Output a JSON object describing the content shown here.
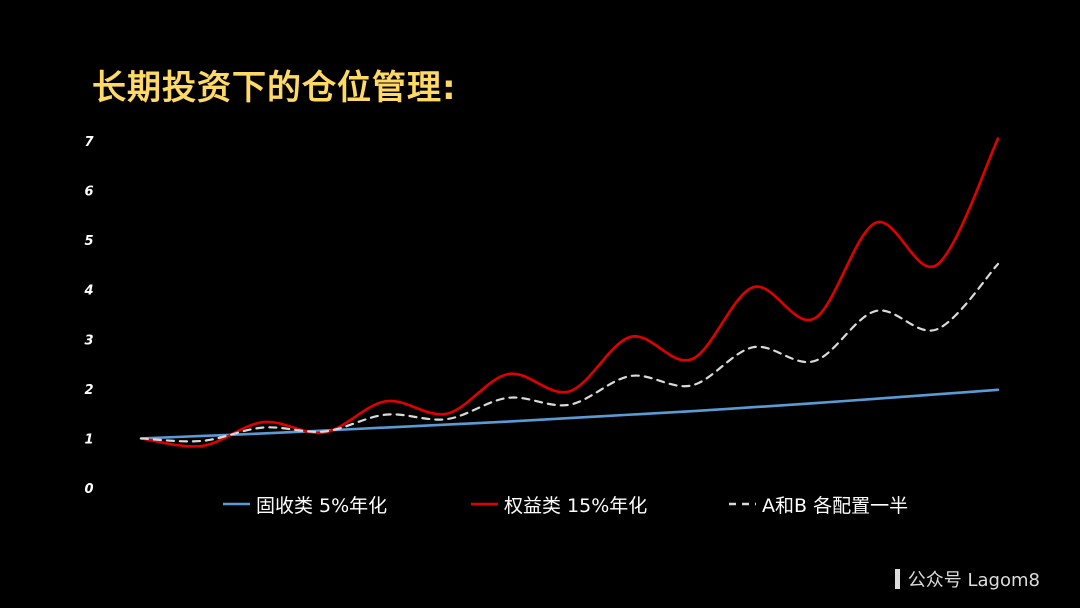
{
  "slide": {
    "title": "长期投资下的仓位管理:",
    "watermark": "公众号 Lagom8"
  },
  "colors": {
    "background": "#000000",
    "title": "#FFD966",
    "fixed_income": "#5B9BD5",
    "equity": "#E00000",
    "mixed": "#D9D9D9"
  },
  "chart_data": {
    "type": "line",
    "title": "",
    "xlabel": "",
    "ylabel": "",
    "ylim": [
      0,
      7
    ],
    "yticks": [
      0,
      1,
      2,
      3,
      4,
      5,
      6,
      7
    ],
    "x": [
      0,
      1,
      2,
      3,
      4,
      5,
      6,
      7,
      8,
      9,
      10,
      11,
      12,
      13,
      14
    ],
    "grid": false,
    "legend_position": "bottom",
    "series": [
      {
        "name": "固收类 5%年化",
        "color": "#5B9BD5",
        "style": "solid",
        "values": [
          1.0,
          1.05,
          1.1,
          1.16,
          1.22,
          1.28,
          1.34,
          1.41,
          1.48,
          1.55,
          1.63,
          1.71,
          1.8,
          1.89,
          1.98
        ]
      },
      {
        "name": "权益类 15%年化",
        "color": "#E00000",
        "style": "solid",
        "values": [
          1.0,
          0.85,
          1.33,
          1.12,
          1.75,
          1.5,
          2.3,
          1.95,
          3.05,
          2.6,
          4.05,
          3.42,
          5.35,
          4.5,
          7.05
        ]
      },
      {
        "name": "A和B 各配置一半",
        "color": "#D9D9D9",
        "style": "dashed",
        "values": [
          1.0,
          0.95,
          1.22,
          1.14,
          1.48,
          1.39,
          1.82,
          1.68,
          2.26,
          2.07,
          2.84,
          2.56,
          3.57,
          3.2,
          4.52
        ]
      }
    ]
  }
}
